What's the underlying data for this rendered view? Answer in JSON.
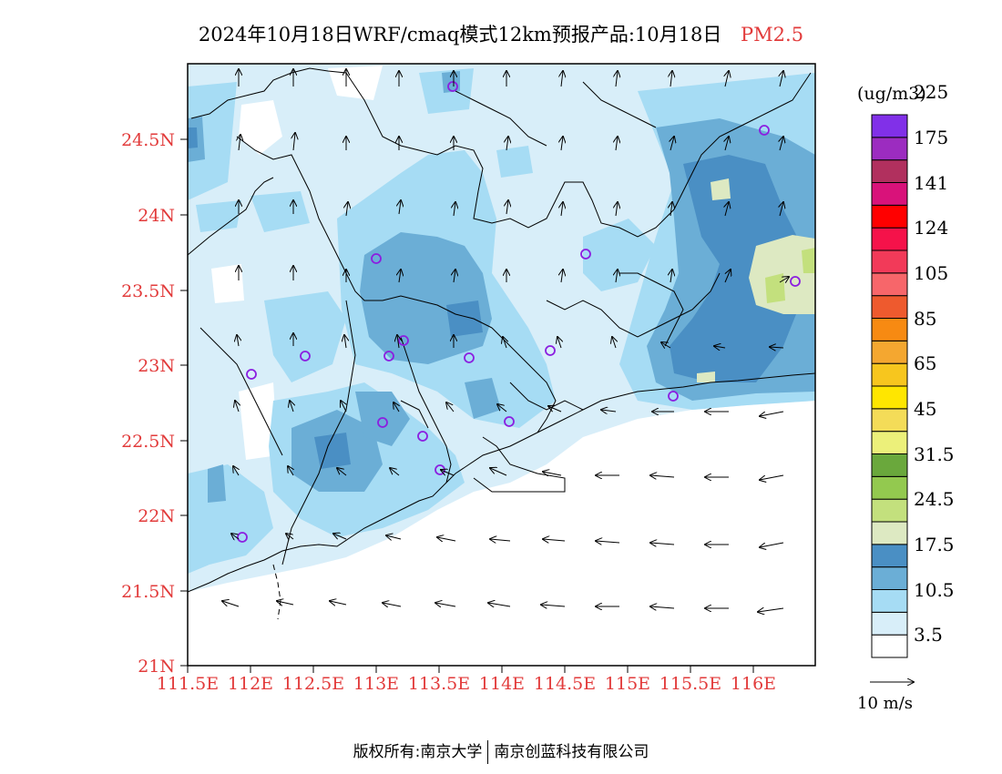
{
  "title": {
    "text": "2024年10月18日WRF/cmaq模式12km预报产品:10月18日",
    "variable": "PM2.5"
  },
  "map": {
    "y_ticks": [
      "21N",
      "21.5N",
      "22N",
      "22.5N",
      "23N",
      "23.5N",
      "24N",
      "24.5N"
    ],
    "x_ticks": [
      "111.5E",
      "112E",
      "112.5E",
      "113E",
      "113.5E",
      "114E",
      "114.5E",
      "115E",
      "115.5E",
      "116E"
    ]
  },
  "colorbar": {
    "units": "(ug/m3)",
    "colors": [
      "#ffffff",
      "#d8eef9",
      "#a6dcf4",
      "#6baed6",
      "#4a8fc4",
      "#dde9c2",
      "#c3e07d",
      "#93c94f",
      "#6aa83c",
      "#ecf07a",
      "#f4dc58",
      "#ffe600",
      "#f7c61e",
      "#f4a730",
      "#f78a12",
      "#ee5a2e",
      "#f7666a",
      "#f23a59",
      "#f5124a",
      "#ff0000",
      "#d9127a",
      "#b1305e",
      "#9c2cc0",
      "#8130e8"
    ],
    "labels": [
      "3.5",
      "10.5",
      "17.5",
      "24.5",
      "31.5",
      "45",
      "65",
      "85",
      "105",
      "124",
      "141",
      "175",
      "225"
    ],
    "reference_vector": "10 m/s"
  },
  "footer": {
    "left": "版权所有:南京大学",
    "right": "南京创蓝科技有限公司"
  }
}
